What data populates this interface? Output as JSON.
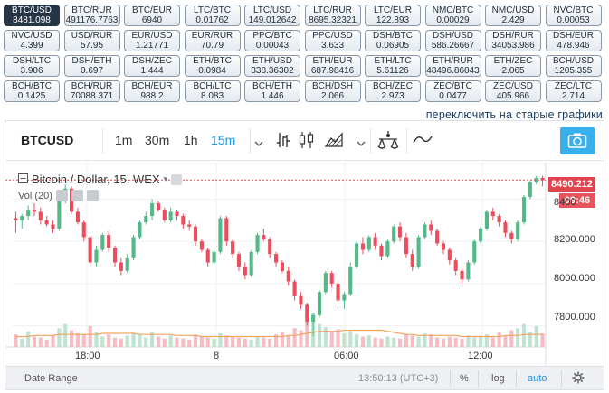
{
  "pairs": [
    {
      "pair": "BTC/USD",
      "price": "8481.098",
      "active": true
    },
    {
      "pair": "BTC/RUR",
      "price": "491176.7763"
    },
    {
      "pair": "BTC/EUR",
      "price": "6940"
    },
    {
      "pair": "LTC/BTC",
      "price": "0.01762"
    },
    {
      "pair": "LTC/USD",
      "price": "149.012642"
    },
    {
      "pair": "LTC/RUR",
      "price": "8695.32321"
    },
    {
      "pair": "LTC/EUR",
      "price": "122.893"
    },
    {
      "pair": "NMC/BTC",
      "price": "0.00029"
    },
    {
      "pair": "NMC/USD",
      "price": "2.429"
    },
    {
      "pair": "NVC/BTC",
      "price": "0.00053"
    },
    {
      "pair": "NVC/USD",
      "price": "4.399"
    },
    {
      "pair": "USD/RUR",
      "price": "57.95"
    },
    {
      "pair": "EUR/USD",
      "price": "1.21771"
    },
    {
      "pair": "EUR/RUR",
      "price": "70.79"
    },
    {
      "pair": "PPC/BTC",
      "price": "0.00043"
    },
    {
      "pair": "PPC/USD",
      "price": "3.633"
    },
    {
      "pair": "DSH/BTC",
      "price": "0.06905"
    },
    {
      "pair": "DSH/USD",
      "price": "586.26667"
    },
    {
      "pair": "DSH/RUR",
      "price": "34053.986"
    },
    {
      "pair": "DSH/EUR",
      "price": "478.946"
    },
    {
      "pair": "DSH/LTC",
      "price": "3.906"
    },
    {
      "pair": "DSH/ETH",
      "price": "0.697"
    },
    {
      "pair": "DSH/ZEC",
      "price": "1.444"
    },
    {
      "pair": "ETH/BTC",
      "price": "0.0984"
    },
    {
      "pair": "ETH/USD",
      "price": "838.36302"
    },
    {
      "pair": "ETH/EUR",
      "price": "687.98416"
    },
    {
      "pair": "ETH/LTC",
      "price": "5.61126"
    },
    {
      "pair": "ETH/RUR",
      "price": "48496.86043"
    },
    {
      "pair": "ETH/ZEC",
      "price": "2.065"
    },
    {
      "pair": "BCH/USD",
      "price": "1205.355"
    },
    {
      "pair": "BCH/BTC",
      "price": "0.1425"
    },
    {
      "pair": "BCH/RUR",
      "price": "70088.371"
    },
    {
      "pair": "BCH/EUR",
      "price": "988.2"
    },
    {
      "pair": "BCH/LTC",
      "price": "8.083"
    },
    {
      "pair": "BCH/ETH",
      "price": "1.446"
    },
    {
      "pair": "BCH/DSH",
      "price": "2.066"
    },
    {
      "pair": "BCH/ZEC",
      "price": "2.973"
    },
    {
      "pair": "ZEC/BTC",
      "price": "0.0477"
    },
    {
      "pair": "ZEC/USD",
      "price": "405.966"
    },
    {
      "pair": "ZEC/LTC",
      "price": "2.714"
    }
  ],
  "switch_link": "переключить на старые графики",
  "toolbar": {
    "symbol": "BTCUSD",
    "intervals": [
      "1m",
      "30m",
      "1h",
      "15m"
    ],
    "active_interval": "15m"
  },
  "legend": {
    "title": "Bitcoin / Dollar, 15, WEX",
    "volume": "Vol (20)"
  },
  "price_tag": "8490.212",
  "countdown_tag": "09:46",
  "y_ticks": [
    "8400",
    "8200.000",
    "8000.000",
    "7800.000"
  ],
  "x_ticks": [
    "18:00",
    "8",
    "06:00",
    "12:00"
  ],
  "statusbar": {
    "date_range": "Date Range",
    "time": "13:50:13 (UTC+3)",
    "percent": "%",
    "log": "log",
    "auto": "auto"
  },
  "colors": {
    "up": "#53b987",
    "down": "#eb4d5c",
    "vol_up": "#bfe3d1",
    "vol_down": "#f5bcc3",
    "accent": "#1e96e6",
    "price_line": "#e0454f"
  },
  "chart_data": {
    "type": "candlestick",
    "y_axis": {
      "min": 7700,
      "max": 8560,
      "ticks": [
        7800,
        8000,
        8200,
        8400
      ]
    },
    "last_price": 8490.212,
    "series": [
      {
        "name": "ohlc",
        "values": [
          [
            8310,
            8340,
            8240,
            8300
          ],
          [
            8300,
            8330,
            8260,
            8320
          ],
          [
            8320,
            8370,
            8300,
            8350
          ],
          [
            8350,
            8380,
            8320,
            8340
          ],
          [
            8340,
            8360,
            8280,
            8300
          ],
          [
            8300,
            8320,
            8270,
            8280
          ],
          [
            8280,
            8300,
            8240,
            8260
          ],
          [
            8260,
            8420,
            8250,
            8400
          ],
          [
            8400,
            8470,
            8380,
            8450
          ],
          [
            8450,
            8460,
            8330,
            8340
          ],
          [
            8340,
            8360,
            8280,
            8290
          ],
          [
            8290,
            8300,
            8200,
            8220
          ],
          [
            8220,
            8230,
            8080,
            8100
          ],
          [
            8100,
            8180,
            8080,
            8160
          ],
          [
            8160,
            8240,
            8150,
            8230
          ],
          [
            8230,
            8250,
            8150,
            8170
          ],
          [
            8170,
            8180,
            8080,
            8100
          ],
          [
            8100,
            8120,
            8040,
            8060
          ],
          [
            8060,
            8140,
            8050,
            8120
          ],
          [
            8120,
            8230,
            8110,
            8220
          ],
          [
            8220,
            8300,
            8210,
            8290
          ],
          [
            8290,
            8340,
            8280,
            8320
          ],
          [
            8320,
            8400,
            8300,
            8380
          ],
          [
            8380,
            8390,
            8340,
            8350
          ],
          [
            8350,
            8360,
            8290,
            8300
          ],
          [
            8300,
            8360,
            8290,
            8340
          ],
          [
            8340,
            8350,
            8300,
            8320
          ],
          [
            8320,
            8330,
            8260,
            8280
          ],
          [
            8280,
            8300,
            8250,
            8270
          ],
          [
            8270,
            8280,
            8180,
            8200
          ],
          [
            8200,
            8210,
            8150,
            8160
          ],
          [
            8160,
            8170,
            8080,
            8100
          ],
          [
            8100,
            8160,
            8090,
            8150
          ],
          [
            8150,
            8320,
            8140,
            8310
          ],
          [
            8310,
            8320,
            8180,
            8200
          ],
          [
            8200,
            8210,
            8120,
            8140
          ],
          [
            8140,
            8150,
            8060,
            8080
          ],
          [
            8080,
            8100,
            8020,
            8040
          ],
          [
            8040,
            8160,
            8030,
            8150
          ],
          [
            8150,
            8240,
            8140,
            8230
          ],
          [
            8230,
            8260,
            8200,
            8210
          ],
          [
            8210,
            8220,
            8120,
            8140
          ],
          [
            8140,
            8150,
            8080,
            8100
          ],
          [
            8100,
            8110,
            8050,
            8060
          ],
          [
            8060,
            8080,
            7990,
            8010
          ],
          [
            8010,
            8020,
            7920,
            7940
          ],
          [
            7940,
            7960,
            7880,
            7900
          ],
          [
            7900,
            7910,
            7800,
            7820
          ],
          [
            7820,
            7860,
            7750,
            7850
          ],
          [
            7850,
            7970,
            7840,
            7960
          ],
          [
            7960,
            8060,
            7950,
            8050
          ],
          [
            8050,
            8060,
            7980,
            8000
          ],
          [
            8000,
            8010,
            7900,
            7920
          ],
          [
            7920,
            7960,
            7880,
            7950
          ],
          [
            7950,
            8100,
            7940,
            8080
          ],
          [
            8080,
            8200,
            8070,
            8190
          ],
          [
            8190,
            8220,
            8140,
            8160
          ],
          [
            8160,
            8230,
            8150,
            8220
          ],
          [
            8220,
            8240,
            8160,
            8180
          ],
          [
            8180,
            8190,
            8110,
            8130
          ],
          [
            8130,
            8210,
            8120,
            8200
          ],
          [
            8200,
            8280,
            8190,
            8270
          ],
          [
            8270,
            8290,
            8200,
            8220
          ],
          [
            8220,
            8240,
            8120,
            8140
          ],
          [
            8140,
            8160,
            8060,
            8080
          ],
          [
            8080,
            8230,
            8070,
            8220
          ],
          [
            8220,
            8290,
            8210,
            8280
          ],
          [
            8280,
            8300,
            8230,
            8250
          ],
          [
            8250,
            8260,
            8180,
            8190
          ],
          [
            8190,
            8200,
            8140,
            8160
          ],
          [
            8160,
            8170,
            8090,
            8110
          ],
          [
            8110,
            8120,
            8040,
            8060
          ],
          [
            8060,
            8070,
            8000,
            8020
          ],
          [
            8020,
            8110,
            8010,
            8100
          ],
          [
            8100,
            8210,
            8090,
            8200
          ],
          [
            8200,
            8270,
            8190,
            8260
          ],
          [
            8260,
            8350,
            8250,
            8340
          ],
          [
            8340,
            8360,
            8300,
            8320
          ],
          [
            8320,
            8330,
            8270,
            8290
          ],
          [
            8290,
            8300,
            8220,
            8240
          ],
          [
            8240,
            8250,
            8190,
            8210
          ],
          [
            8210,
            8300,
            8200,
            8290
          ],
          [
            8290,
            8420,
            8280,
            8410
          ],
          [
            8410,
            8490,
            8400,
            8480
          ],
          [
            8480,
            8510,
            8470,
            8500
          ],
          [
            8500,
            8510,
            8460,
            8490
          ]
        ]
      }
    ],
    "volume": [
      12,
      8,
      15,
      10,
      9,
      7,
      11,
      18,
      22,
      16,
      13,
      12,
      20,
      14,
      10,
      12,
      9,
      8,
      11,
      13,
      12,
      9,
      14,
      10,
      8,
      11,
      9,
      8,
      7,
      12,
      10,
      9,
      8,
      13,
      11,
      10,
      9,
      8,
      7,
      10,
      9,
      8,
      12,
      14,
      11,
      18,
      16,
      25,
      33,
      22,
      19,
      14,
      17,
      13,
      15,
      12,
      10,
      11,
      9,
      8,
      10,
      9,
      8,
      12,
      11,
      10,
      13,
      12,
      9,
      8,
      10,
      9,
      8,
      11,
      9,
      10,
      12,
      9,
      14,
      11,
      16,
      18,
      22,
      14,
      20,
      13
    ],
    "volume_ma": [
      10,
      10,
      10,
      11,
      11,
      11,
      11,
      12,
      12,
      12,
      12,
      12,
      12,
      12,
      13,
      13,
      13,
      13,
      13,
      13,
      12,
      12,
      12,
      12,
      12,
      12,
      11,
      11,
      11,
      11,
      10,
      10,
      10,
      10,
      10,
      10,
      10,
      10,
      10,
      10,
      10,
      10,
      10,
      10,
      11,
      11,
      12,
      13,
      14,
      15,
      15,
      15,
      15,
      16,
      16,
      16,
      16,
      16,
      16,
      16,
      15,
      14,
      13,
      12,
      12,
      11,
      11,
      11,
      11,
      11,
      11,
      11,
      10,
      10,
      10,
      10,
      10,
      10,
      10,
      11,
      11,
      11,
      12,
      12,
      12,
      12
    ],
    "x_ticks": [
      "18:00",
      "8",
      "06:00",
      "12:00"
    ]
  }
}
